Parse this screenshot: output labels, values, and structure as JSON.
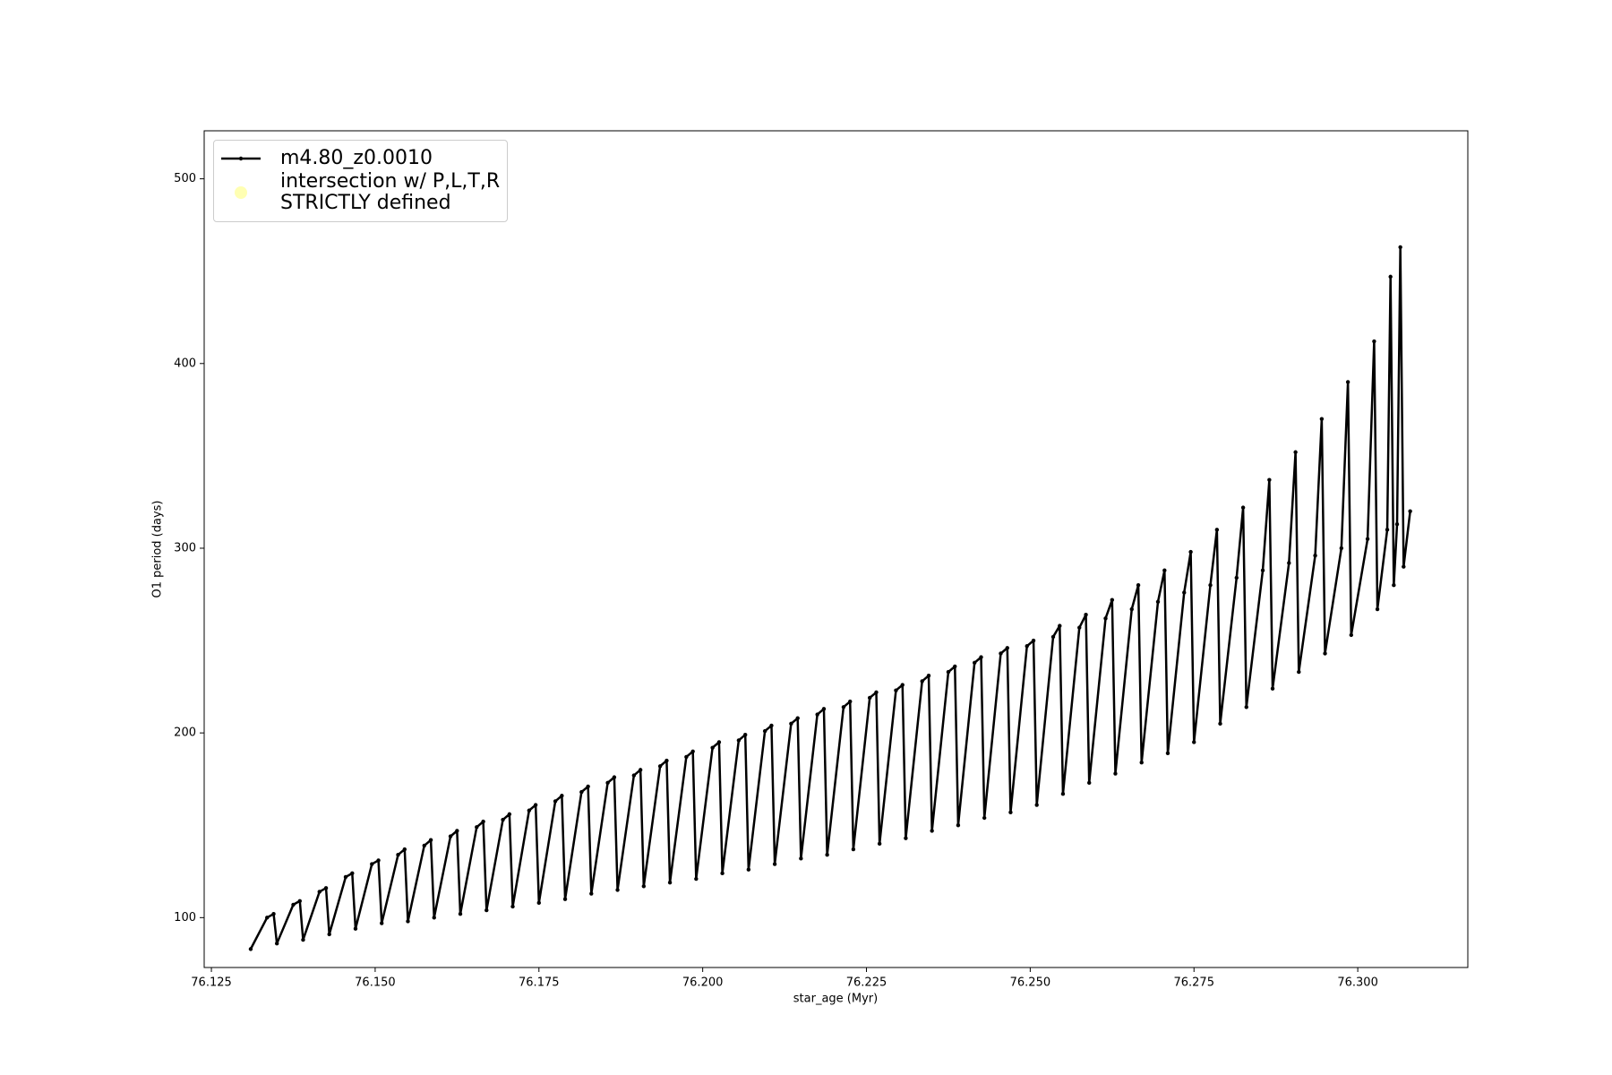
{
  "chart_data": {
    "type": "line",
    "xlabel": "star_age (Myr)",
    "ylabel": "O1 period (days)",
    "xlim": [
      76.1239,
      76.3168
    ],
    "ylim": [
      73,
      526
    ],
    "xticks": [
      76.125,
      {
        "value": 76.15,
        "label": "76.150"
      },
      76.175,
      {
        "value": 76.2,
        "label": "76.200"
      },
      76.225,
      {
        "value": 76.25,
        "label": "76.250"
      },
      76.275,
      {
        "value": 76.3,
        "label": "76.300"
      }
    ],
    "yticks": [
      100,
      200,
      300,
      400,
      500
    ],
    "grid": false,
    "legend": "upper left",
    "series": [
      {
        "name": "m4.80_z0.0010",
        "color": "#000000",
        "type": "line",
        "x": [
          76.131,
          76.1335,
          76.1345,
          76.135,
          76.1375,
          76.1385,
          76.139,
          76.1415,
          76.1425,
          76.143,
          76.1455,
          76.1465,
          76.147,
          76.1495,
          76.1505,
          76.151,
          76.1535,
          76.1545,
          76.155,
          76.1575,
          76.1585,
          76.159,
          76.1615,
          76.1625,
          76.163,
          76.1655,
          76.1665,
          76.167,
          76.1695,
          76.1705,
          76.171,
          76.1735,
          76.1745,
          76.175,
          76.1775,
          76.1785,
          76.179,
          76.1815,
          76.1825,
          76.183,
          76.1855,
          76.1865,
          76.187,
          76.1895,
          76.1905,
          76.191,
          76.1935,
          76.1945,
          76.195,
          76.1975,
          76.1985,
          76.199,
          76.2015,
          76.2025,
          76.203,
          76.2055,
          76.2065,
          76.207,
          76.2095,
          76.2105,
          76.211,
          76.2135,
          76.2145,
          76.215,
          76.2175,
          76.2185,
          76.219,
          76.2215,
          76.2225,
          76.223,
          76.2255,
          76.2265,
          76.227,
          76.2295,
          76.2305,
          76.231,
          76.2335,
          76.2345,
          76.235,
          76.2375,
          76.2385,
          76.239,
          76.2415,
          76.2425,
          76.243,
          76.2455,
          76.2465,
          76.247,
          76.2495,
          76.2505,
          76.251,
          76.2535,
          76.2545,
          76.255,
          76.2575,
          76.2585,
          76.259,
          76.2615,
          76.2625,
          76.263,
          76.2655,
          76.2665,
          76.267,
          76.2695,
          76.2705,
          76.271,
          76.2735,
          76.2745,
          76.275,
          76.2775,
          76.2785,
          76.279,
          76.2815,
          76.2825,
          76.283,
          76.2855,
          76.2865,
          76.287,
          76.2895,
          76.2905,
          76.291,
          76.2935,
          76.2945,
          76.295,
          76.2975,
          76.2985,
          76.299,
          76.3015,
          76.3025,
          76.303,
          76.3045,
          76.305,
          76.3055,
          76.306,
          76.3065,
          76.307,
          76.308
        ],
        "values": [
          83,
          100,
          102,
          86,
          107,
          109,
          88,
          114,
          116,
          91,
          122,
          124,
          94,
          129,
          131,
          97,
          134,
          137,
          98,
          139,
          142,
          100,
          144,
          147,
          102,
          149,
          152,
          104,
          153,
          156,
          106,
          158,
          161,
          108,
          163,
          166,
          110,
          168,
          171,
          113,
          173,
          176,
          115,
          177,
          180,
          117,
          182,
          185,
          119,
          187,
          190,
          121,
          192,
          195,
          124,
          196,
          199,
          126,
          201,
          204,
          129,
          205,
          208,
          132,
          210,
          213,
          134,
          214,
          217,
          137,
          219,
          222,
          140,
          223,
          226,
          143,
          228,
          231,
          147,
          233,
          236,
          150,
          238,
          241,
          154,
          243,
          246,
          157,
          247,
          250,
          161,
          252,
          258,
          167,
          257,
          264,
          173,
          262,
          272,
          178,
          267,
          280,
          184,
          271,
          288,
          189,
          276,
          298,
          195,
          280,
          310,
          205,
          284,
          322,
          214,
          288,
          337,
          224,
          292,
          352,
          233,
          296,
          370,
          243,
          300,
          390,
          253,
          305,
          412,
          267,
          310,
          447,
          280,
          313,
          463,
          290,
          320
        ]
      },
      {
        "name": "intersection w/ P,L,T,R\nSTRICTLY defined",
        "color": "#ffffb3",
        "type": "scatter",
        "x": [],
        "values": []
      }
    ]
  }
}
